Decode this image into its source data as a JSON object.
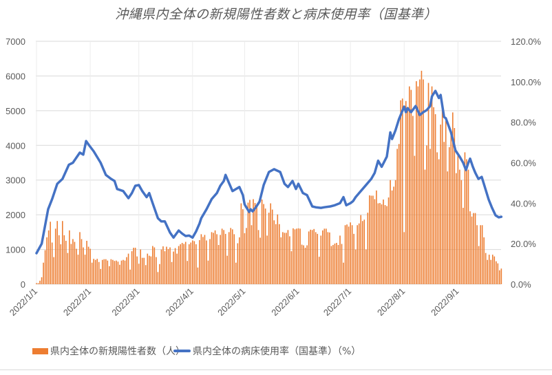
{
  "chart_data": {
    "type": "bar+line",
    "title": "沖縄県内全体の新規陽性者数と病床使用率（国基準）",
    "start_date": "2022/1/1",
    "x_tick_labels": [
      "2022/1/1",
      "2022/2/1",
      "2022/3/1",
      "2022/4/1",
      "2022/5/1",
      "2022/6/1",
      "2022/7/1",
      "2022/8/1",
      "2022/9/1"
    ],
    "x_tick_days": [
      0,
      31,
      59,
      90,
      120,
      151,
      181,
      212,
      243
    ],
    "y_left": {
      "min": 0,
      "max": 7000,
      "step": 1000,
      "tick_labels": [
        "0",
        "1000",
        "2000",
        "3000",
        "4000",
        "5000",
        "6000",
        "7000"
      ]
    },
    "y_right": {
      "min": 0,
      "max": 120,
      "step": 20,
      "tick_labels": [
        "0.0%",
        "20.0%",
        "40.0%",
        "60.0%",
        "80.0%",
        "100.0%",
        "120.0%"
      ]
    },
    "grid": true,
    "legend_position": "bottom",
    "series": [
      {
        "name": "県内全体の新規陽性者数（人）",
        "type": "bar",
        "axis": "left",
        "color": "#ed7d31",
        "values": [
          30,
          30,
          100,
          200,
          620,
          980,
          1350,
          1550,
          1800,
          1200,
          780,
          1600,
          1820,
          1410,
          1150,
          1820,
          1410,
          1250,
          900,
          1550,
          1160,
          1300,
          1220,
          1020,
          850,
          1500,
          1300,
          1060,
          850,
          1250,
          1080,
          1020,
          620,
          730,
          700,
          730,
          640,
          440,
          700,
          720,
          720,
          680,
          520,
          720,
          700,
          670,
          680,
          650,
          560,
          680,
          700,
          680,
          780,
          880,
          420,
          950,
          1050,
          1050,
          800,
          590,
          1000,
          760,
          760,
          550,
          880,
          820,
          800,
          1100,
          1060,
          780,
          350,
          580,
          1000,
          1090,
          950,
          1080,
          1010,
          1060,
          640,
          940,
          1040,
          880,
          1100,
          1150,
          1190,
          1160,
          1220,
          670,
          1150,
          1200,
          1260,
          1240,
          1150,
          480,
          1270,
          1440,
          1360,
          1420,
          1260,
          680,
          1300,
          1500,
          1480,
          1550,
          1440,
          1130,
          1420,
          1600,
          1560,
          1450,
          820,
          1500,
          1620,
          1580,
          1440,
          620,
          1180,
          1350,
          2330,
          2160,
          1470,
          1620,
          2350,
          2430,
          1700,
          2450,
          2340,
          2240,
          1560,
          1340,
          2440,
          2310,
          2180,
          1400,
          2060,
          2330,
          2150,
          1840,
          1730,
          2010,
          1730,
          1350,
          1500,
          1480,
          1480,
          1560,
          1380,
          950,
          1610,
          1580,
          1600,
          1610,
          1600,
          1140,
          1120,
          1050,
          1120,
          1520,
          1570,
          1560,
          1590,
          1500,
          1450,
          790,
          1400,
          1550,
          1600,
          1600,
          1500,
          1490,
          1100,
          1130,
          1170,
          1190,
          1130,
          1400,
          1160,
          620,
          1700,
          1720,
          1660,
          1780,
          1700,
          1450,
          1000,
          1700,
          1750,
          1990,
          1820,
          1860,
          1000,
          2060,
          2560,
          2550,
          2550,
          2450,
          2700,
          2330,
          2340,
          2300,
          2440,
          2280,
          2250,
          2500,
          3000,
          2700,
          2810,
          3000,
          3900,
          4040,
          5300,
          5350,
          1500,
          5280,
          5100,
          5700,
          5600,
          4850,
          3700,
          5850,
          5700,
          5900,
          6150,
          5900,
          3300,
          4000,
          5800,
          3900,
          5700,
          5100,
          4900,
          3800,
          3600,
          4600,
          5200,
          4100,
          4700,
          3250,
          3950,
          4400,
          4950,
          4500,
          3200,
          3750,
          3300,
          3000,
          2200,
          3800,
          3600,
          3300,
          2100,
          1950,
          2050,
          2050,
          1700,
          1100,
          1700,
          1700,
          1350,
          900,
          700,
          850,
          700,
          850,
          800,
          660,
          600,
          400,
          450
        ]
      },
      {
        "name": "県内全体の病床使用率（国基準）（%）",
        "type": "line",
        "axis": "right",
        "color": "#4472c4",
        "points": [
          [
            0,
            15.3
          ],
          [
            3,
            20
          ],
          [
            6.7,
            37
          ],
          [
            9,
            42
          ],
          [
            12,
            49.6
          ],
          [
            15,
            52
          ],
          [
            18.7,
            59
          ],
          [
            21,
            60
          ],
          [
            25,
            65
          ],
          [
            27,
            64
          ],
          [
            28.6,
            70.7
          ],
          [
            30,
            69
          ],
          [
            33,
            65.6
          ],
          [
            37,
            60
          ],
          [
            40,
            54
          ],
          [
            43,
            52
          ],
          [
            45,
            51
          ],
          [
            46.5,
            47
          ],
          [
            50,
            46
          ],
          [
            53,
            42.5
          ],
          [
            55,
            45
          ],
          [
            57,
            48.6
          ],
          [
            59,
            49
          ],
          [
            61,
            46
          ],
          [
            63.5,
            43
          ],
          [
            65,
            45
          ],
          [
            67,
            40
          ],
          [
            70,
            32.6
          ],
          [
            72,
            31
          ],
          [
            74,
            31
          ],
          [
            77,
            25.5
          ],
          [
            79,
            23
          ],
          [
            82,
            26.5
          ],
          [
            84,
            25
          ],
          [
            86,
            23.8
          ],
          [
            88,
            24
          ],
          [
            90,
            23
          ],
          [
            92,
            26
          ],
          [
            94,
            30
          ],
          [
            95,
            32.6
          ],
          [
            98,
            37
          ],
          [
            101,
            42
          ],
          [
            104,
            45
          ],
          [
            106,
            48.6
          ],
          [
            108,
            51
          ],
          [
            109,
            54
          ],
          [
            111,
            50
          ],
          [
            113,
            46
          ],
          [
            115,
            47
          ],
          [
            117,
            48
          ],
          [
            119,
            44
          ],
          [
            120,
            39.4
          ],
          [
            122.6,
            35.7
          ],
          [
            123.5,
            37
          ],
          [
            124.6,
            36
          ],
          [
            126.5,
            38
          ],
          [
            128.6,
            40.8
          ],
          [
            131,
            49
          ],
          [
            134,
            55.4
          ],
          [
            137,
            56.8
          ],
          [
            140.5,
            55.4
          ],
          [
            143,
            49.6
          ],
          [
            145,
            48
          ],
          [
            147.6,
            51
          ],
          [
            149.6,
            47
          ],
          [
            151,
            49.6
          ],
          [
            153.6,
            45
          ],
          [
            156,
            44
          ],
          [
            159,
            38.4
          ],
          [
            161,
            38
          ],
          [
            164,
            37.7
          ],
          [
            166,
            38
          ],
          [
            169.4,
            38.4
          ],
          [
            172,
            39
          ],
          [
            175,
            40
          ],
          [
            177,
            43
          ],
          [
            178.6,
            39
          ],
          [
            181,
            40
          ],
          [
            182.5,
            41
          ],
          [
            184,
            43
          ],
          [
            186,
            45
          ],
          [
            189,
            48
          ],
          [
            193,
            52
          ],
          [
            195,
            55
          ],
          [
            197,
            61
          ],
          [
            199,
            58
          ],
          [
            202,
            63
          ],
          [
            204,
            75
          ],
          [
            205,
            71.7
          ],
          [
            207,
            76
          ],
          [
            209,
            81.6
          ],
          [
            212,
            87.7
          ],
          [
            213,
            85
          ],
          [
            214,
            87
          ],
          [
            216,
            85
          ],
          [
            218.6,
            88
          ],
          [
            221,
            83.6
          ],
          [
            223,
            85
          ],
          [
            225,
            86
          ],
          [
            227,
            88
          ],
          [
            228,
            92.8
          ],
          [
            230,
            95.5
          ],
          [
            232,
            92
          ],
          [
            233,
            93.5
          ],
          [
            235,
            82.6
          ],
          [
            236,
            82
          ],
          [
            239,
            75
          ],
          [
            241.6,
            66
          ],
          [
            244,
            63
          ],
          [
            246,
            60
          ],
          [
            247.6,
            56.4
          ],
          [
            249,
            60
          ],
          [
            250,
            62
          ],
          [
            251.6,
            58
          ],
          [
            253,
            55
          ],
          [
            254.8,
            52
          ],
          [
            256.7,
            53
          ],
          [
            258.5,
            48
          ],
          [
            260.7,
            41.8
          ],
          [
            262.5,
            38
          ],
          [
            264.7,
            34
          ],
          [
            266.5,
            33
          ],
          [
            268,
            33.3
          ]
        ]
      }
    ]
  }
}
